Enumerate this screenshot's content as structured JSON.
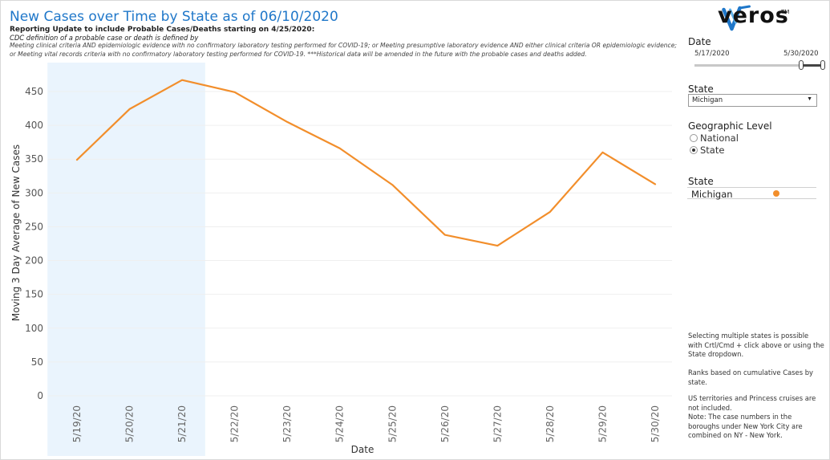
{
  "header": {
    "title": "New Cases over Time by State as of 06/10/2020",
    "subtitle": "Reporting Update to include Probable Cases/Deaths starting on 4/25/2020:",
    "subnote": "CDC definition of a probable case or death is defined by",
    "note": "Meeting clinical criteria AND epidemiologic evidence with no confirmatory laboratory testing performed for COVID-19; or Meeting presumptive laboratory evidence AND either clinical criteria OR epidemiologic evidence; or Meeting vital records criteria with no confirmatory laboratory testing performed for COVID-19. ***Historical data will be amended in the future with the probable cases and deaths added."
  },
  "brand": {
    "name": "veros",
    "tm": "TM",
    "logo_icon": "veros-logo-icon"
  },
  "filters": {
    "date_label": "Date",
    "date_start": "5/17/2020",
    "date_end": "5/30/2020",
    "state_label": "State",
    "state_value": "Michigan",
    "geo_label": "Geographic Level",
    "geo_options": [
      {
        "label": "National",
        "checked": false
      },
      {
        "label": "State",
        "checked": true
      }
    ]
  },
  "legend": {
    "title": "State",
    "items": [
      {
        "name": "Michigan",
        "color": "#f28e2b"
      }
    ]
  },
  "info": {
    "p1": "Selecting multiple states is possible with Crtl/Cmd + click above or using the State dropdown.",
    "p2": "Ranks based on cumulative Cases by state.",
    "p3": "US territories and Princess cruises are not included.",
    "p4": "Note: The case numbers in the boroughs under New York City are combined on NY - New York."
  },
  "colors": {
    "line": "#f28e2b",
    "highlight": "#eaf4fd",
    "title": "#1f77c9"
  },
  "chart_data": {
    "type": "line",
    "xlabel": "Date",
    "ylabel": "Moving 3 Day Average of New Cases",
    "categories": [
      "5/19/20",
      "5/20/20",
      "5/21/20",
      "5/22/20",
      "5/23/20",
      "5/24/20",
      "5/25/20",
      "5/26/20",
      "5/27/20",
      "5/28/20",
      "5/29/20",
      "5/30/20"
    ],
    "series": [
      {
        "name": "Michigan",
        "values": [
          349,
          424,
          467,
          449,
          405,
          366,
          312,
          238,
          222,
          272,
          360,
          313
        ]
      }
    ],
    "ylim": [
      0,
      480
    ],
    "yticks": [
      0,
      50,
      100,
      150,
      200,
      250,
      300,
      350,
      400,
      450
    ],
    "highlight_range": [
      "5/19/20",
      "5/21/20"
    ],
    "grid": true
  }
}
